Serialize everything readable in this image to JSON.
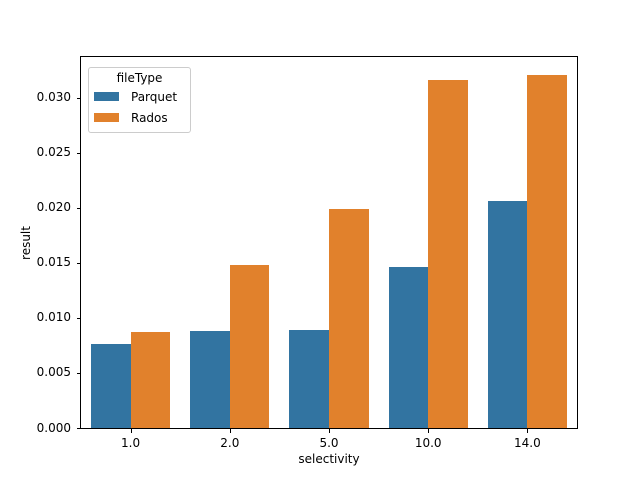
{
  "chart_data": {
    "type": "bar",
    "title": "",
    "xlabel": "selectivity",
    "ylabel": "result",
    "categories": [
      "1.0",
      "2.0",
      "5.0",
      "10.0",
      "14.0"
    ],
    "series": [
      {
        "name": "Parquet",
        "color": "#3274a1",
        "values": [
          0.0076,
          0.0088,
          0.0089,
          0.0146,
          0.0206
        ]
      },
      {
        "name": "Rados",
        "color": "#e1812c",
        "values": [
          0.0087,
          0.0148,
          0.0199,
          0.0316,
          0.0321
        ]
      }
    ],
    "legend": {
      "title": "fileType",
      "position": "upper left"
    },
    "ylim": [
      0,
      0.0337
    ],
    "yticks": [
      "0.000",
      "0.005",
      "0.010",
      "0.015",
      "0.020",
      "0.025",
      "0.030"
    ],
    "grid": false,
    "bar_group_width_fraction": 0.8,
    "axis_color": "#000000",
    "legend_border_color": "#cccccc"
  }
}
